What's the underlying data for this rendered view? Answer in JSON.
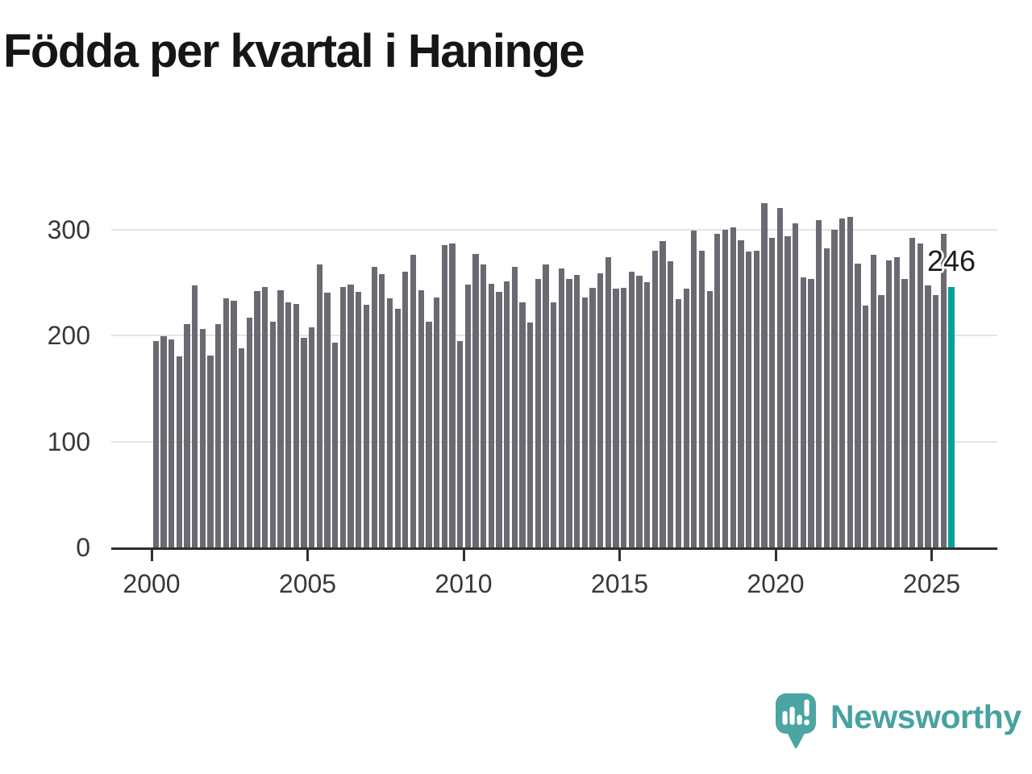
{
  "title": "Födda per kvartal i Haninge",
  "annotation": {
    "label": "246"
  },
  "logo": {
    "text": "Newsworthy",
    "icon": "newsworthy-bubble-chart-icon"
  },
  "chart_data": {
    "type": "bar",
    "title": "Födda per kvartal i Haninge",
    "x_start": "2000-Q1",
    "x_end": "2025-Q3",
    "frequency": "quarterly",
    "values": [
      195,
      199,
      196,
      180,
      211,
      247,
      206,
      181,
      211,
      235,
      233,
      188,
      217,
      242,
      246,
      213,
      243,
      231,
      230,
      198,
      208,
      267,
      240,
      193,
      246,
      248,
      241,
      229,
      265,
      258,
      235,
      225,
      260,
      276,
      243,
      213,
      236,
      285,
      287,
      195,
      248,
      277,
      267,
      249,
      241,
      251,
      265,
      231,
      212,
      253,
      267,
      231,
      263,
      253,
      257,
      236,
      245,
      259,
      274,
      244,
      245,
      260,
      256,
      250,
      280,
      289,
      270,
      234,
      244,
      299,
      280,
      242,
      296,
      300,
      302,
      290,
      279,
      280,
      325,
      292,
      320,
      294,
      306,
      255,
      253,
      309,
      282,
      300,
      310,
      312,
      268,
      228,
      276,
      238,
      271,
      274,
      253,
      292,
      287,
      247,
      238,
      296,
      246
    ],
    "highlight": {
      "index": 102,
      "value": 246,
      "label": "246"
    },
    "y_ticks": [
      0,
      100,
      200,
      300
    ],
    "x_ticks": [
      2000,
      2005,
      2010,
      2015,
      2020,
      2025
    ],
    "ylim": [
      0,
      335
    ],
    "grid": "horizontal",
    "legend": "none",
    "colors": {
      "bar": "#6a6a72",
      "highlight": "#00a19a",
      "gridline": "#e4e4e4",
      "axis": "#2f2f2f",
      "tick_text": "#38383a",
      "title_text": "#161616",
      "logo": "#4ba5a3"
    }
  }
}
